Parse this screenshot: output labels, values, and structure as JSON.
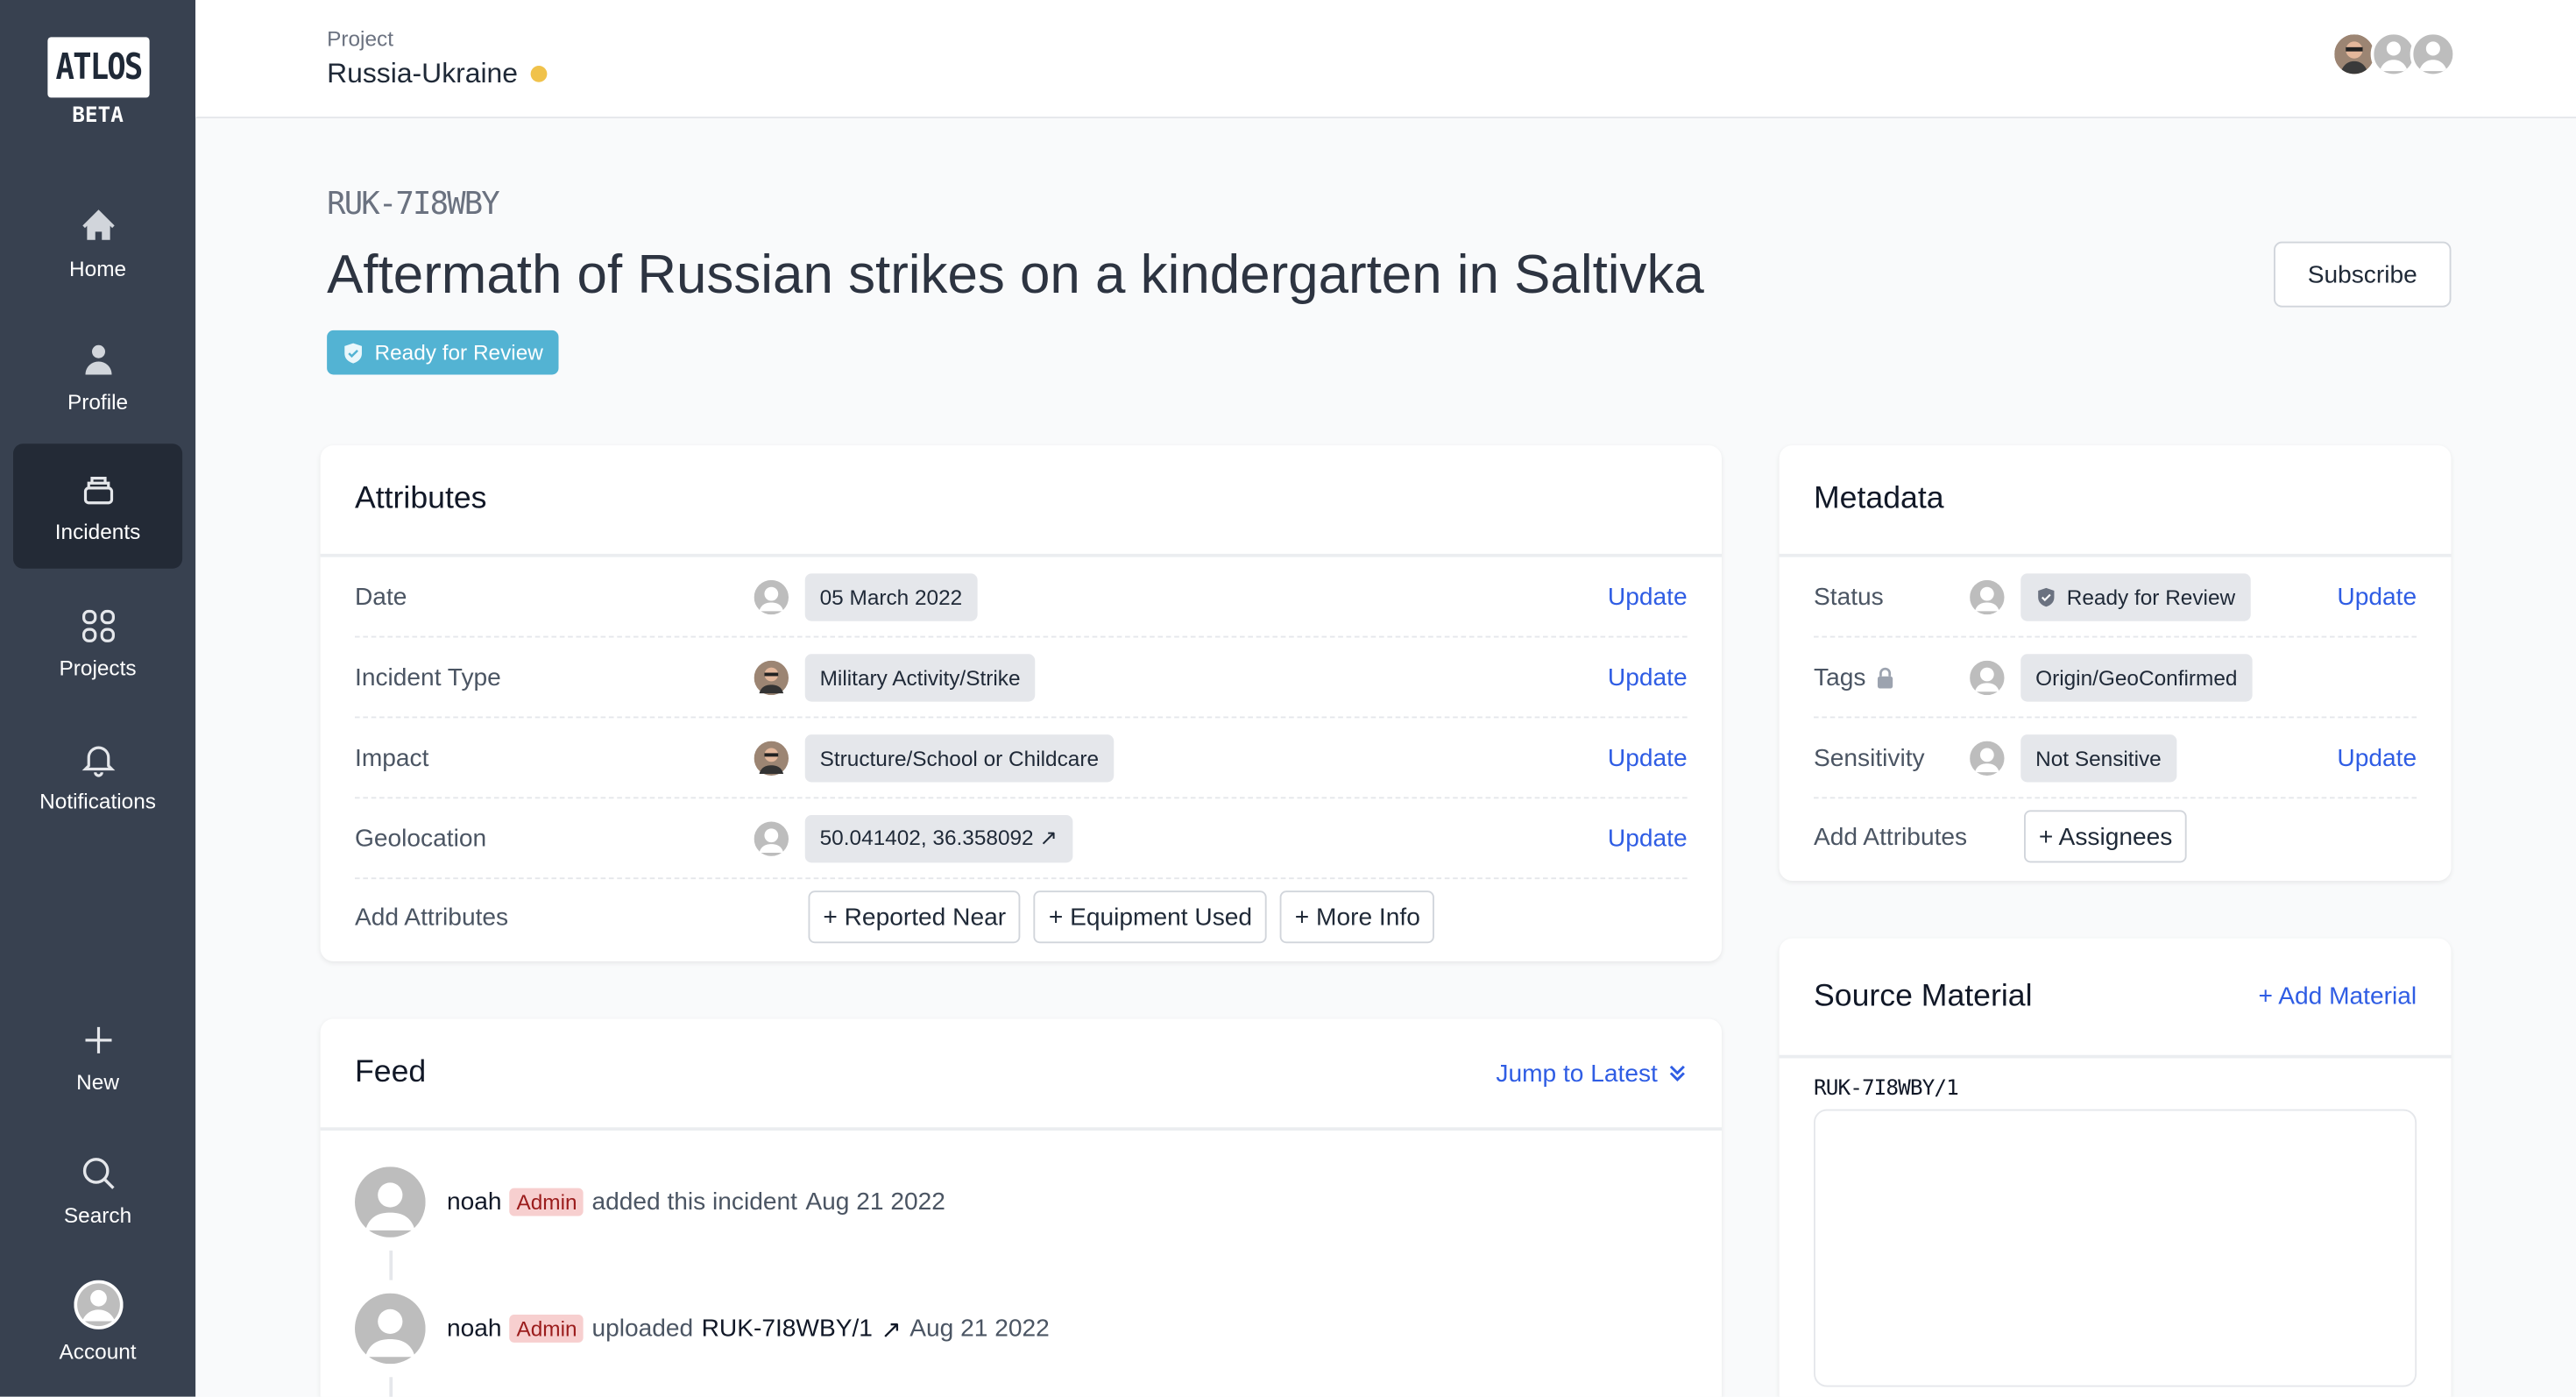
{
  "sidebar": {
    "logo": "ATLOS",
    "beta": "BETA",
    "items": [
      {
        "label": "Home",
        "icon": "home-icon"
      },
      {
        "label": "Profile",
        "icon": "user-icon"
      },
      {
        "label": "Incidents",
        "icon": "inbox-stack-icon",
        "active": true
      },
      {
        "label": "Projects",
        "icon": "grid-icon"
      },
      {
        "label": "Notifications",
        "icon": "bell-icon"
      }
    ],
    "bottom": [
      {
        "label": "New",
        "icon": "plus-icon"
      },
      {
        "label": "Search",
        "icon": "search-icon"
      },
      {
        "label": "Account",
        "icon": "account-avatar-icon"
      }
    ]
  },
  "header": {
    "project_label": "Project",
    "project_name": "Russia-Ukraine",
    "project_color": "#f0c24b"
  },
  "incident": {
    "id": "RUK-7I8WBY",
    "title": "Aftermath of Russian strikes on a kindergarten in Saltivka",
    "status_badge": "Ready for Review",
    "status_color": "#53b3d3",
    "subscribe": "Subscribe"
  },
  "attributes": {
    "title": "Attributes",
    "rows": [
      {
        "label": "Date",
        "value": "05 March 2022",
        "action": "Update"
      },
      {
        "label": "Incident Type",
        "value": "Military Activity/Strike",
        "action": "Update"
      },
      {
        "label": "Impact",
        "value": "Structure/School or Childcare",
        "action": "Update"
      },
      {
        "label": "Geolocation",
        "value": "50.041402, 36.358092 ↗",
        "action": "Update"
      }
    ],
    "add_label": "Add Attributes",
    "add_buttons": [
      "+ Reported Near",
      "+ Equipment Used",
      "+ More Info"
    ]
  },
  "metadata": {
    "title": "Metadata",
    "rows": [
      {
        "label": "Status",
        "value": "Ready for Review",
        "action": "Update"
      },
      {
        "label": "Tags",
        "value": "Origin/GeoConfirmed"
      },
      {
        "label": "Sensitivity",
        "value": "Not Sensitive",
        "action": "Update"
      }
    ],
    "add_label": "Add Attributes",
    "add_buttons": [
      "+ Assignees"
    ]
  },
  "feed": {
    "title": "Feed",
    "jump": "Jump to Latest",
    "items": [
      {
        "user": "noah",
        "role": "Admin",
        "text": "added this incident",
        "date": "Aug 21 2022"
      },
      {
        "user": "noah",
        "role": "Admin",
        "text": "uploaded",
        "link": "RUK-7I8WBY/1",
        "date": "Aug 21 2022"
      }
    ]
  },
  "source": {
    "title": "Source Material",
    "add": "+ Add Material",
    "items": [
      {
        "id": "RUK-7I8WBY/1"
      }
    ]
  },
  "colors": {
    "sidebar": "#384150",
    "link": "#2f5de4",
    "admin_bg": "#f7cfcf"
  }
}
